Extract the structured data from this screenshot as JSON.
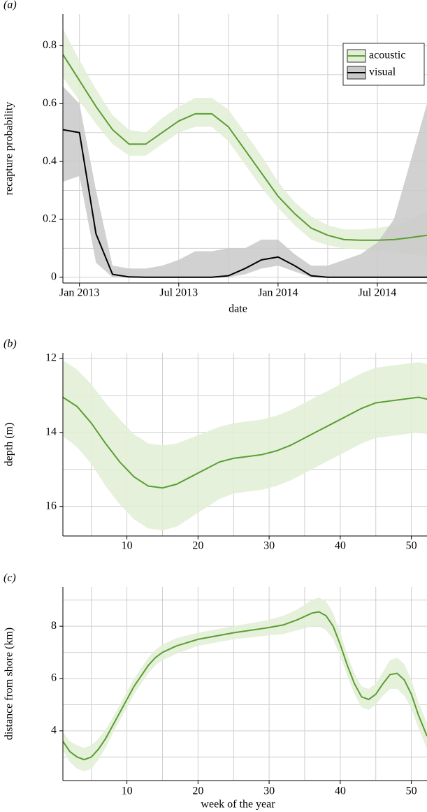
{
  "chart_data": [
    {
      "type": "line",
      "panel_label": "(a)",
      "xlabel": "date",
      "ylabel": "recapture probability",
      "x_type": "month",
      "x": [
        "2012-12",
        "2013-01",
        "2013-02",
        "2013-03",
        "2013-04",
        "2013-05",
        "2013-06",
        "2013-07",
        "2013-08",
        "2013-09",
        "2013-10",
        "2013-11",
        "2013-12",
        "2014-01",
        "2014-02",
        "2014-03",
        "2014-04",
        "2014-05",
        "2014-06",
        "2014-07",
        "2014-08",
        "2014-09",
        "2014-10"
      ],
      "xlim": [
        "2012-12",
        "2014-10"
      ],
      "xticks": [
        {
          "value": "2013-01",
          "label": "Jan 2013"
        },
        {
          "value": "2013-07",
          "label": "Jul 2013"
        },
        {
          "value": "2014-01",
          "label": "Jan 2014"
        },
        {
          "value": "2014-07",
          "label": "Jul 2014"
        }
      ],
      "x_minor_grid": [
        "2013-04",
        "2013-10",
        "2014-04"
      ],
      "ylim": [
        -0.02,
        0.91
      ],
      "yticks": [
        0,
        0.2,
        0.4,
        0.6,
        0.8
      ],
      "y_minor_grid": [
        0.1,
        0.3,
        0.5,
        0.7
      ],
      "grid": true,
      "legend": "upper right",
      "series": [
        {
          "name": "acoustic",
          "color": "#5a9e32",
          "band_color": "#e2eed5",
          "values": [
            0.77,
            0.68,
            0.59,
            0.51,
            0.46,
            0.46,
            0.5,
            0.54,
            0.565,
            0.565,
            0.52,
            0.44,
            0.36,
            0.28,
            0.22,
            0.17,
            0.145,
            0.13,
            0.128,
            0.128,
            0.13,
            0.137,
            0.145
          ],
          "lower": [
            0.69,
            0.61,
            0.53,
            0.46,
            0.42,
            0.42,
            0.46,
            0.5,
            0.52,
            0.52,
            0.47,
            0.39,
            0.31,
            0.24,
            0.18,
            0.13,
            0.11,
            0.1,
            0.095,
            0.09,
            0.085,
            0.08,
            0.07
          ],
          "upper": [
            0.86,
            0.75,
            0.65,
            0.56,
            0.51,
            0.5,
            0.55,
            0.59,
            0.62,
            0.62,
            0.58,
            0.5,
            0.42,
            0.33,
            0.26,
            0.21,
            0.18,
            0.165,
            0.165,
            0.17,
            0.18,
            0.2,
            0.23
          ]
        },
        {
          "name": "visual",
          "color": "#000000",
          "band_color": "#c9c9c9",
          "values": [
            0.51,
            0.5,
            0.15,
            0.01,
            0.001,
            0,
            0,
            0,
            0,
            0,
            0.005,
            0.03,
            0.06,
            0.07,
            0.04,
            0.005,
            0,
            0,
            0,
            0,
            0,
            0,
            0
          ],
          "lower": [
            0.33,
            0.35,
            0.05,
            0,
            0,
            0,
            0,
            0,
            0,
            0,
            0,
            0.01,
            0.03,
            0.04,
            0.02,
            0,
            0,
            0,
            0,
            0,
            0,
            0,
            0
          ],
          "upper": [
            0.66,
            0.6,
            0.3,
            0.04,
            0.03,
            0.03,
            0.04,
            0.06,
            0.09,
            0.09,
            0.1,
            0.1,
            0.13,
            0.13,
            0.08,
            0.04,
            0.04,
            0.06,
            0.08,
            0.12,
            0.2,
            0.4,
            0.6
          ]
        }
      ]
    },
    {
      "type": "line",
      "panel_label": "(b)",
      "ylabel": "depth (m)",
      "invert_y": true,
      "x": [
        1,
        3,
        5,
        7,
        9,
        11,
        13,
        15,
        17,
        19,
        21,
        23,
        25,
        27,
        29,
        31,
        33,
        35,
        37,
        39,
        41,
        43,
        45,
        47,
        49,
        51,
        52.2
      ],
      "xlim": [
        1,
        52.2
      ],
      "xticks": [
        10,
        20,
        30,
        40,
        50
      ],
      "x_minor_grid": [
        5,
        15,
        25,
        35,
        45
      ],
      "ylim": [
        11.85,
        16.8
      ],
      "yticks": [
        12,
        14,
        16
      ],
      "y_minor_grid": [
        13,
        15
      ],
      "grid": true,
      "series": [
        {
          "color": "#5a9e32",
          "band_color": "#e2eed5",
          "values": [
            13.05,
            13.3,
            13.75,
            14.3,
            14.8,
            15.2,
            15.45,
            15.5,
            15.4,
            15.2,
            15.0,
            14.8,
            14.7,
            14.65,
            14.6,
            14.5,
            14.35,
            14.15,
            13.95,
            13.75,
            13.55,
            13.35,
            13.2,
            13.15,
            13.1,
            13.05,
            13.1
          ],
          "lower": [
            12.05,
            12.3,
            12.7,
            13.2,
            13.65,
            14.05,
            14.3,
            14.35,
            14.3,
            14.15,
            14.0,
            13.85,
            13.75,
            13.7,
            13.65,
            13.55,
            13.4,
            13.2,
            13.0,
            12.8,
            12.6,
            12.4,
            12.25,
            12.2,
            12.15,
            12.1,
            12.15
          ],
          "upper": [
            14.1,
            14.4,
            14.85,
            15.45,
            15.95,
            16.35,
            16.6,
            16.65,
            16.55,
            16.3,
            16.05,
            15.8,
            15.65,
            15.6,
            15.55,
            15.45,
            15.3,
            15.1,
            14.9,
            14.7,
            14.5,
            14.3,
            14.15,
            14.1,
            14.05,
            14.0,
            14.05
          ]
        }
      ]
    },
    {
      "type": "line",
      "panel_label": "(c)",
      "xlabel": "week of the year",
      "ylabel": "distance from shore (km)",
      "x": [
        1,
        2,
        3,
        4,
        5,
        6,
        7,
        8,
        9,
        10,
        11,
        12,
        13,
        14,
        15,
        17,
        20,
        25,
        30,
        32,
        34,
        36,
        37,
        38,
        39,
        40,
        41,
        42,
        43,
        44,
        45,
        46,
        47,
        48,
        49,
        50,
        51,
        52.2
      ],
      "xlim": [
        1,
        52.2
      ],
      "xticks": [
        10,
        20,
        30,
        40,
        50
      ],
      "x_minor_grid": [
        5,
        15,
        25,
        35,
        45
      ],
      "ylim": [
        2.1,
        9.5
      ],
      "yticks": [
        4,
        6,
        8
      ],
      "y_minor_grid": [
        3,
        5,
        7,
        9
      ],
      "grid": true,
      "series": [
        {
          "color": "#5a9e32",
          "band_color": "#e2eed5",
          "values": [
            3.6,
            3.2,
            3.0,
            2.9,
            3.0,
            3.3,
            3.7,
            4.2,
            4.7,
            5.2,
            5.7,
            6.1,
            6.5,
            6.8,
            7.0,
            7.25,
            7.5,
            7.75,
            7.95,
            8.05,
            8.25,
            8.5,
            8.55,
            8.4,
            8.0,
            7.3,
            6.5,
            5.8,
            5.3,
            5.2,
            5.4,
            5.8,
            6.15,
            6.2,
            5.95,
            5.4,
            4.6,
            3.8
          ],
          "lower": [
            3.25,
            2.8,
            2.55,
            2.45,
            2.55,
            2.9,
            3.35,
            3.9,
            4.4,
            4.9,
            5.4,
            5.8,
            6.2,
            6.5,
            6.7,
            6.95,
            7.25,
            7.5,
            7.65,
            7.7,
            7.85,
            8.0,
            8.0,
            7.85,
            7.5,
            6.85,
            6.1,
            5.4,
            4.9,
            4.8,
            5.0,
            5.35,
            5.6,
            5.6,
            5.35,
            4.85,
            4.1,
            3.3
          ],
          "upper": [
            3.95,
            3.6,
            3.45,
            3.35,
            3.45,
            3.7,
            4.05,
            4.5,
            5.0,
            5.5,
            6.0,
            6.4,
            6.8,
            7.1,
            7.3,
            7.55,
            7.75,
            8.0,
            8.25,
            8.4,
            8.65,
            9.0,
            9.1,
            8.95,
            8.5,
            7.75,
            6.9,
            6.2,
            5.7,
            5.6,
            5.8,
            6.25,
            6.7,
            6.8,
            6.55,
            5.95,
            5.1,
            4.3
          ]
        }
      ]
    }
  ]
}
